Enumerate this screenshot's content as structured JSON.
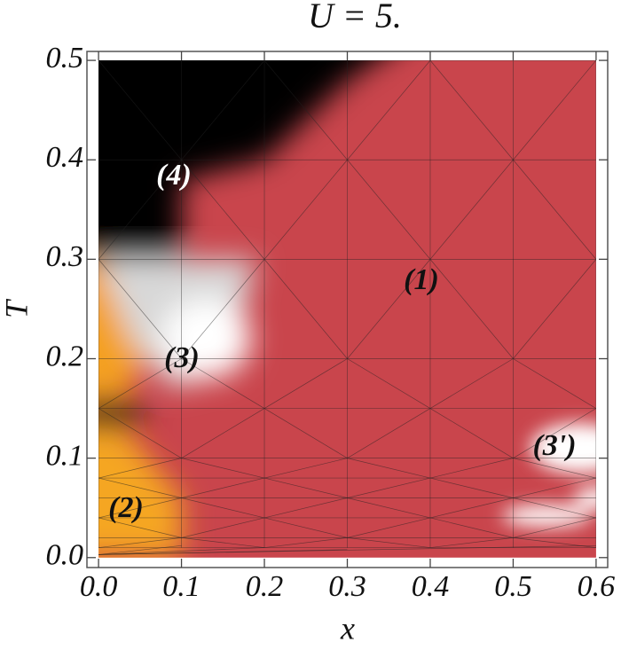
{
  "chart_data": {
    "type": "density",
    "title": "U = 5.",
    "x_label": "x",
    "y_label": "T",
    "xlim": [
      -0.014,
      0.614
    ],
    "ylim": [
      -0.01,
      0.509
    ],
    "xticks": [
      {
        "value": 0,
        "label": "0.0"
      },
      0.1,
      0.2,
      0.3,
      0.4,
      0.5,
      0.6
    ],
    "yticks": [
      {
        "value": 0,
        "label": "0.0"
      },
      0.1,
      0.2,
      0.3,
      0.4,
      0.5
    ],
    "annotations": [
      "(1)",
      "(2)",
      "(3)",
      "(3')",
      "(4)"
    ]
  }
}
